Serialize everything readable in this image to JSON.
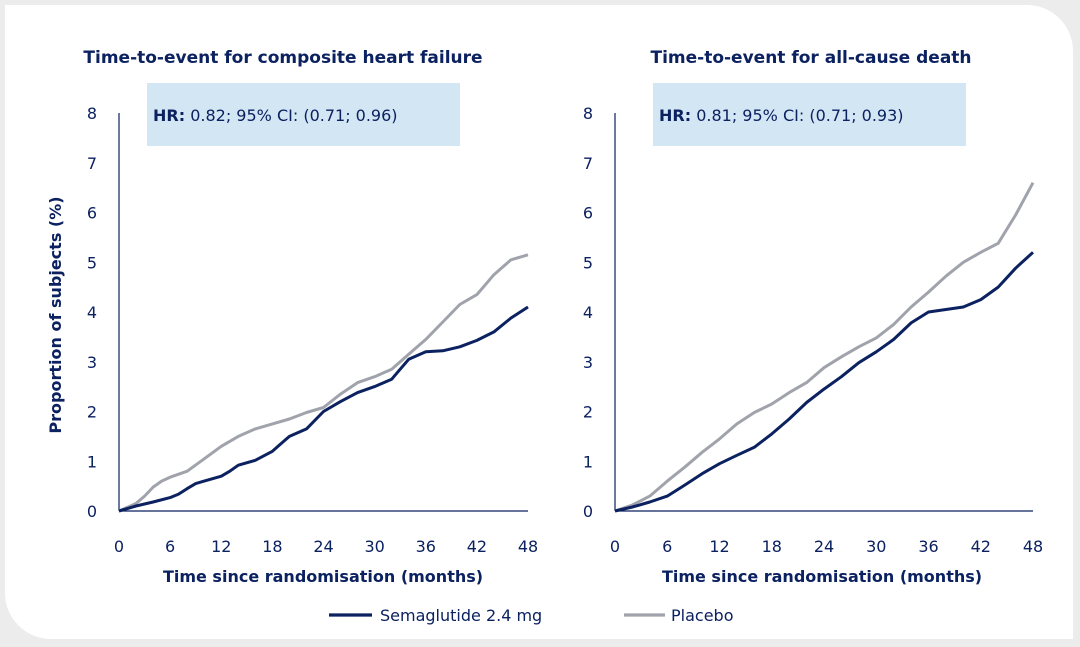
{
  "chart_data": [
    {
      "type": "line",
      "title": "Time-to-event for composite heart failure",
      "xlabel": "Time since randomisation (months)",
      "ylabel": "Proportion of subjects (%)",
      "xlim": [
        0,
        48
      ],
      "ylim": [
        0,
        8
      ],
      "xticks": [
        "0",
        "6",
        "12",
        "18",
        "24",
        "30",
        "36",
        "42",
        "48"
      ],
      "yticks": [
        "0",
        "1",
        "2",
        "3",
        "4",
        "5",
        "6",
        "7",
        "8"
      ],
      "grid": false,
      "annotation": {
        "label": "HR:",
        "text": "0.82; 95% CI: (0.71; 0.96)"
      },
      "series": [
        {
          "name": "Semaglutide 2.4 mg",
          "color": "#0b2160",
          "points": [
            [
              0,
              0
            ],
            [
              2,
              0.1
            ],
            [
              4,
              0.18
            ],
            [
              6,
              0.27
            ],
            [
              7,
              0.34
            ],
            [
              8,
              0.45
            ],
            [
              9,
              0.55
            ],
            [
              10,
              0.6
            ],
            [
              12,
              0.7
            ],
            [
              13,
              0.8
            ],
            [
              14,
              0.92
            ],
            [
              16,
              1.02
            ],
            [
              18,
              1.2
            ],
            [
              19,
              1.35
            ],
            [
              20,
              1.5
            ],
            [
              22,
              1.65
            ],
            [
              24,
              2.0
            ],
            [
              26,
              2.2
            ],
            [
              28,
              2.38
            ],
            [
              30,
              2.5
            ],
            [
              32,
              2.65
            ],
            [
              33,
              2.85
            ],
            [
              34,
              3.05
            ],
            [
              36,
              3.2
            ],
            [
              38,
              3.22
            ],
            [
              40,
              3.3
            ],
            [
              42,
              3.43
            ],
            [
              44,
              3.6
            ],
            [
              46,
              3.88
            ],
            [
              48,
              4.1
            ]
          ]
        },
        {
          "name": "Placebo",
          "color": "#a0a3ab",
          "points": [
            [
              0,
              0
            ],
            [
              2,
              0.15
            ],
            [
              3,
              0.3
            ],
            [
              4,
              0.48
            ],
            [
              5,
              0.6
            ],
            [
              6,
              0.68
            ],
            [
              8,
              0.8
            ],
            [
              10,
              1.05
            ],
            [
              12,
              1.3
            ],
            [
              14,
              1.5
            ],
            [
              16,
              1.65
            ],
            [
              18,
              1.75
            ],
            [
              20,
              1.85
            ],
            [
              22,
              1.98
            ],
            [
              24,
              2.08
            ],
            [
              26,
              2.35
            ],
            [
              28,
              2.58
            ],
            [
              30,
              2.7
            ],
            [
              32,
              2.85
            ],
            [
              34,
              3.15
            ],
            [
              36,
              3.45
            ],
            [
              38,
              3.8
            ],
            [
              40,
              4.15
            ],
            [
              42,
              4.35
            ],
            [
              44,
              4.75
            ],
            [
              46,
              5.05
            ],
            [
              48,
              5.15
            ]
          ]
        }
      ]
    },
    {
      "type": "line",
      "title": "Time-to-event for all-cause death",
      "xlabel": "Time since randomisation (months)",
      "ylabel": "",
      "xlim": [
        0,
        48
      ],
      "ylim": [
        0,
        8
      ],
      "xticks": [
        "0",
        "6",
        "12",
        "18",
        "24",
        "30",
        "36",
        "42",
        "48"
      ],
      "yticks": [
        "0",
        "1",
        "2",
        "3",
        "4",
        "5",
        "6",
        "7",
        "8"
      ],
      "grid": false,
      "annotation": {
        "label": "HR:",
        "text": "0.81; 95% CI: (0.71; 0.93)"
      },
      "series": [
        {
          "name": "Semaglutide 2.4 mg",
          "color": "#0b2160",
          "points": [
            [
              0,
              0
            ],
            [
              2,
              0.08
            ],
            [
              4,
              0.18
            ],
            [
              6,
              0.3
            ],
            [
              8,
              0.52
            ],
            [
              10,
              0.75
            ],
            [
              12,
              0.95
            ],
            [
              14,
              1.12
            ],
            [
              16,
              1.28
            ],
            [
              18,
              1.55
            ],
            [
              20,
              1.85
            ],
            [
              22,
              2.18
            ],
            [
              24,
              2.45
            ],
            [
              26,
              2.7
            ],
            [
              28,
              2.98
            ],
            [
              30,
              3.2
            ],
            [
              32,
              3.45
            ],
            [
              34,
              3.78
            ],
            [
              36,
              4.0
            ],
            [
              38,
              4.05
            ],
            [
              40,
              4.1
            ],
            [
              42,
              4.25
            ],
            [
              44,
              4.5
            ],
            [
              46,
              4.88
            ],
            [
              48,
              5.2
            ]
          ]
        },
        {
          "name": "Placebo",
          "color": "#a0a3ab",
          "points": [
            [
              0,
              0
            ],
            [
              2,
              0.12
            ],
            [
              4,
              0.3
            ],
            [
              6,
              0.6
            ],
            [
              8,
              0.88
            ],
            [
              10,
              1.18
            ],
            [
              12,
              1.45
            ],
            [
              14,
              1.75
            ],
            [
              16,
              1.98
            ],
            [
              18,
              2.15
            ],
            [
              20,
              2.38
            ],
            [
              22,
              2.58
            ],
            [
              24,
              2.88
            ],
            [
              26,
              3.1
            ],
            [
              28,
              3.3
            ],
            [
              30,
              3.48
            ],
            [
              32,
              3.75
            ],
            [
              34,
              4.1
            ],
            [
              36,
              4.4
            ],
            [
              38,
              4.72
            ],
            [
              40,
              5.0
            ],
            [
              42,
              5.2
            ],
            [
              44,
              5.38
            ],
            [
              46,
              5.95
            ],
            [
              48,
              6.6
            ]
          ]
        }
      ]
    }
  ],
  "legend": [
    {
      "label": "Semaglutide 2.4 mg",
      "color": "#0b2160"
    },
    {
      "label": "Placebo",
      "color": "#a0a3ab"
    }
  ],
  "colors": {
    "accent": "#0b2160",
    "annotation_bg": "#d3e6f4",
    "frame": "#ececec"
  }
}
